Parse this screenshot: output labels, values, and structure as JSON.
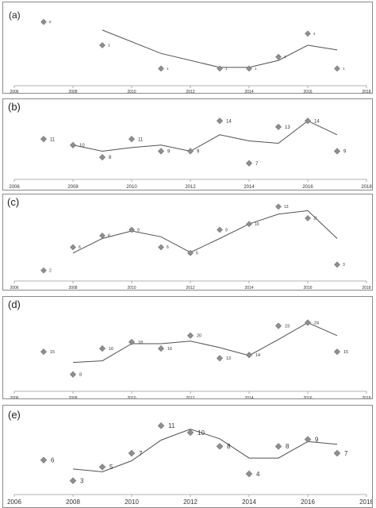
{
  "chart_data": [
    {
      "type": "scatter",
      "label": "(a)",
      "x_ticks": [
        "2006",
        "2008",
        "2010",
        "2012",
        "2014",
        "2016",
        "2018"
      ],
      "xlim": [
        2006,
        2018
      ],
      "ylim": [
        0,
        6
      ],
      "points": [
        {
          "x": 2007,
          "y": 5,
          "label": "5"
        },
        {
          "x": 2009,
          "y": 3,
          "label": "3"
        },
        {
          "x": 2011,
          "y": 1,
          "label": "1"
        },
        {
          "x": 2013,
          "y": 1,
          "label": "1"
        },
        {
          "x": 2014,
          "y": 1,
          "label": "1"
        },
        {
          "x": 2015,
          "y": 2,
          "label": "2"
        },
        {
          "x": 2016,
          "y": 4,
          "label": "4"
        },
        {
          "x": 2017,
          "y": 1,
          "label": "1"
        }
      ],
      "trend": [
        {
          "x": 2009,
          "y": 4.3
        },
        {
          "x": 2011,
          "y": 2.3
        },
        {
          "x": 2013,
          "y": 1.1
        },
        {
          "x": 2014,
          "y": 1.1
        },
        {
          "x": 2015,
          "y": 1.7
        },
        {
          "x": 2016,
          "y": 3.0
        },
        {
          "x": 2017,
          "y": 2.6
        }
      ]
    },
    {
      "type": "scatter",
      "label": "(b)",
      "x_ticks": [
        "2006",
        "2008",
        "2010",
        "2012",
        "2014",
        "2016",
        "2018"
      ],
      "xlim": [
        2006,
        2018
      ],
      "ylim": [
        5,
        16
      ],
      "points": [
        {
          "x": 2007,
          "y": 11,
          "label": "11"
        },
        {
          "x": 2008,
          "y": 10,
          "label": "10"
        },
        {
          "x": 2009,
          "y": 8,
          "label": "8"
        },
        {
          "x": 2010,
          "y": 11,
          "label": "11"
        },
        {
          "x": 2011,
          "y": 9,
          "label": "9"
        },
        {
          "x": 2012,
          "y": 9,
          "label": "9"
        },
        {
          "x": 2013,
          "y": 14,
          "label": "14"
        },
        {
          "x": 2014,
          "y": 7,
          "label": "7"
        },
        {
          "x": 2015,
          "y": 13,
          "label": "13"
        },
        {
          "x": 2016,
          "y": 14,
          "label": "14"
        },
        {
          "x": 2017,
          "y": 9,
          "label": "9"
        }
      ],
      "trend": [
        {
          "x": 2008,
          "y": 10
        },
        {
          "x": 2009,
          "y": 9
        },
        {
          "x": 2010,
          "y": 9.6
        },
        {
          "x": 2011,
          "y": 10
        },
        {
          "x": 2012,
          "y": 9
        },
        {
          "x": 2013,
          "y": 11.7
        },
        {
          "x": 2014,
          "y": 10.7
        },
        {
          "x": 2015,
          "y": 10.3
        },
        {
          "x": 2016,
          "y": 14
        },
        {
          "x": 2017,
          "y": 11.7
        }
      ]
    },
    {
      "type": "scatter",
      "label": "(c)",
      "x_ticks": [
        "2006",
        "2008",
        "2010",
        "2012",
        "2014",
        "2016",
        "2018"
      ],
      "xlim": [
        2006,
        2018
      ],
      "ylim": [
        1,
        14
      ],
      "points": [
        {
          "x": 2007,
          "y": 2,
          "label": "2"
        },
        {
          "x": 2008,
          "y": 6,
          "label": "6"
        },
        {
          "x": 2009,
          "y": 8,
          "label": "8"
        },
        {
          "x": 2010,
          "y": 9,
          "label": "9"
        },
        {
          "x": 2011,
          "y": 6,
          "label": "6"
        },
        {
          "x": 2012,
          "y": 5,
          "label": "5"
        },
        {
          "x": 2013,
          "y": 9,
          "label": "9"
        },
        {
          "x": 2014,
          "y": 10,
          "label": "10"
        },
        {
          "x": 2015,
          "y": 13,
          "label": "13"
        },
        {
          "x": 2016,
          "y": 11,
          "label": "11"
        },
        {
          "x": 2017,
          "y": 3,
          "label": "3"
        }
      ],
      "trend": [
        {
          "x": 2008,
          "y": 5
        },
        {
          "x": 2009,
          "y": 7.5
        },
        {
          "x": 2010,
          "y": 8.8
        },
        {
          "x": 2011,
          "y": 7.8
        },
        {
          "x": 2012,
          "y": 5.1
        },
        {
          "x": 2013,
          "y": 7.5
        },
        {
          "x": 2014,
          "y": 10
        },
        {
          "x": 2015,
          "y": 11.7
        },
        {
          "x": 2016,
          "y": 12.3
        },
        {
          "x": 2017,
          "y": 7.5
        }
      ]
    },
    {
      "type": "scatter",
      "label": "(d)",
      "x_ticks": [
        "2006",
        "2008",
        "2010",
        "2012",
        "2014",
        "2016",
        "2018"
      ],
      "xlim": [
        2006,
        2018
      ],
      "ylim": [
        4,
        30
      ],
      "points": [
        {
          "x": 2007,
          "y": 15,
          "label": "15"
        },
        {
          "x": 2008,
          "y": 8,
          "label": "8"
        },
        {
          "x": 2009,
          "y": 16,
          "label": "16"
        },
        {
          "x": 2010,
          "y": 18,
          "label": "18"
        },
        {
          "x": 2011,
          "y": 16,
          "label": "16"
        },
        {
          "x": 2012,
          "y": 20,
          "label": "20"
        },
        {
          "x": 2013,
          "y": 13,
          "label": "13"
        },
        {
          "x": 2014,
          "y": 14,
          "label": "14"
        },
        {
          "x": 2015,
          "y": 23,
          "label": "23"
        },
        {
          "x": 2016,
          "y": 24,
          "label": "24"
        },
        {
          "x": 2017,
          "y": 15,
          "label": "15"
        }
      ],
      "trend": [
        {
          "x": 2008,
          "y": 11.7
        },
        {
          "x": 2009,
          "y": 12.2
        },
        {
          "x": 2010,
          "y": 17.5
        },
        {
          "x": 2011,
          "y": 17.5
        },
        {
          "x": 2012,
          "y": 18.3
        },
        {
          "x": 2013,
          "y": 16.3
        },
        {
          "x": 2014,
          "y": 13.8
        },
        {
          "x": 2015,
          "y": 18.8
        },
        {
          "x": 2016,
          "y": 24
        },
        {
          "x": 2017,
          "y": 20
        }
      ]
    },
    {
      "type": "scatter",
      "label": "(e)",
      "x_ticks": [
        "2006",
        "2008",
        "2010",
        "2012",
        "2014",
        "2016",
        "2018"
      ],
      "xlim": [
        2006,
        2018
      ],
      "ylim": [
        1,
        13
      ],
      "points": [
        {
          "x": 2007,
          "y": 6,
          "label": "6"
        },
        {
          "x": 2008,
          "y": 3,
          "label": "3"
        },
        {
          "x": 2009,
          "y": 5,
          "label": "5"
        },
        {
          "x": 2010,
          "y": 7,
          "label": "7"
        },
        {
          "x": 2011,
          "y": 11,
          "label": "11"
        },
        {
          "x": 2012,
          "y": 10,
          "label": "10"
        },
        {
          "x": 2013,
          "y": 8,
          "label": "8"
        },
        {
          "x": 2014,
          "y": 4,
          "label": "4"
        },
        {
          "x": 2015,
          "y": 8,
          "label": "8"
        },
        {
          "x": 2016,
          "y": 9,
          "label": "9"
        },
        {
          "x": 2017,
          "y": 7,
          "label": "7"
        }
      ],
      "trend": [
        {
          "x": 2008,
          "y": 4.7
        },
        {
          "x": 2009,
          "y": 4.3
        },
        {
          "x": 2010,
          "y": 5.9
        },
        {
          "x": 2011,
          "y": 8.9
        },
        {
          "x": 2012,
          "y": 10.5
        },
        {
          "x": 2013,
          "y": 9.1
        },
        {
          "x": 2014,
          "y": 6.3
        },
        {
          "x": 2015,
          "y": 6.3
        },
        {
          "x": 2016,
          "y": 8.7
        },
        {
          "x": 2017,
          "y": 8.3
        }
      ]
    }
  ],
  "colors": {
    "marker": "#8f8f8f",
    "marker_stroke": "#6f6f6f",
    "line": "#505050",
    "axis": "#9a9a9a",
    "frame": "#8a8a8a"
  }
}
